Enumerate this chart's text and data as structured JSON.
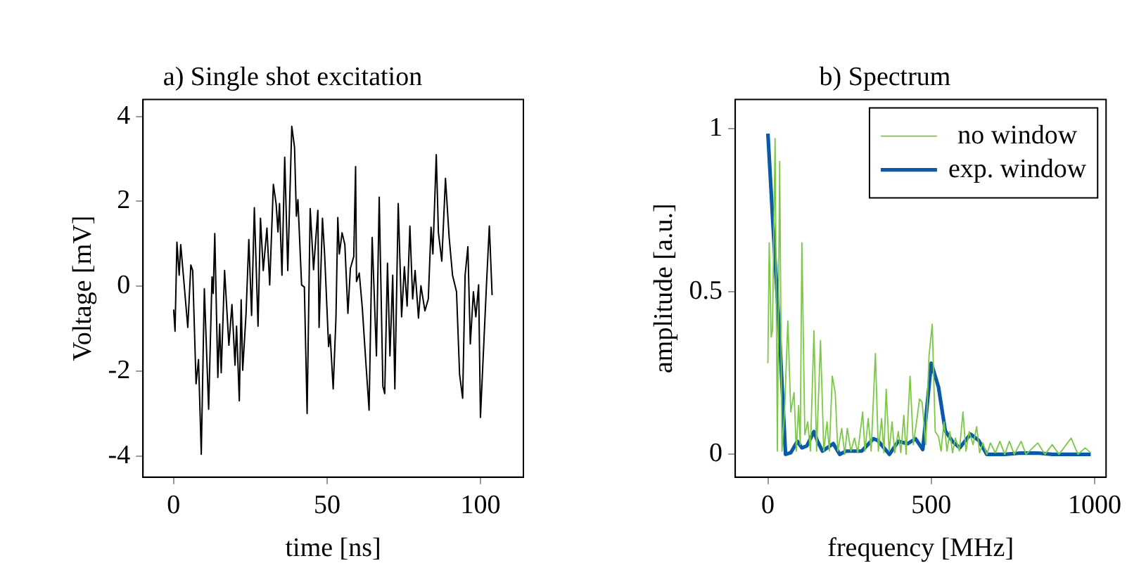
{
  "chart_data": [
    {
      "type": "line",
      "title": "a) Single shot excitation",
      "xlabel": "time [ns]",
      "ylabel": "Voltage [mV]",
      "xlim": [
        -10,
        114
      ],
      "xticks": [
        0,
        50,
        100
      ],
      "ylim": [
        -4.5,
        4.4
      ],
      "yticks": [
        -4,
        -2,
        0,
        2,
        4
      ],
      "grid": false,
      "legend": false,
      "marker": "none",
      "series": [
        {
          "color": "#000000",
          "x": [
            0,
            0.45,
            1.06,
            1.8,
            2.3,
            3.3,
            4.6,
            5.6,
            6.2,
            7.3,
            8.1,
            9.0,
            10,
            11.4,
            12.5,
            12.9,
            13.4,
            14.4,
            15,
            15.5,
            16.6,
            18,
            19,
            20,
            20.5,
            21.4,
            22,
            22.5,
            23.6,
            24.5,
            25.4,
            26.3,
            27.5,
            28.3,
            29.2,
            30.4,
            31.3,
            32.5,
            33.4,
            34,
            34.5,
            35.3,
            36.2,
            37.2,
            38.5,
            39.4,
            40,
            40.5,
            41.7,
            42.6,
            43.5,
            44.5,
            45.6,
            47,
            47.4,
            48.5,
            49.2,
            50.5,
            51,
            52,
            52.9,
            53.5,
            54,
            54.9,
            55.8,
            56.8,
            57.6,
            58.7,
            59.3,
            59.6,
            60.5,
            61.5,
            62.5,
            63.7,
            64.7,
            66.1,
            67,
            68.2,
            68.8,
            69.7,
            70.5,
            71.4,
            72.1,
            73.2,
            74.3,
            75.2,
            76.1,
            77,
            77.9,
            78.7,
            79.8,
            80.6,
            81.9,
            83,
            83.9,
            84.5,
            85.6,
            86.3,
            87.4,
            88.6,
            89.8,
            90.9,
            92.2,
            93.2,
            94.2,
            95,
            95.9,
            96.7,
            97.7,
            98.5,
            99.4,
            100,
            102,
            102.9,
            103.8
          ],
          "values": [
            -0.55,
            -1.06,
            1.04,
            0.26,
            0.98,
            0.14,
            -0.97,
            0.5,
            0.37,
            -2.3,
            -1.73,
            -3.96,
            -0.06,
            -2.9,
            0.22,
            -0.17,
            1.24,
            -2.15,
            -0.89,
            -2.04,
            0.37,
            -1.39,
            -0.43,
            -1.86,
            -0.94,
            -2.7,
            -0.32,
            -1.98,
            -0.64,
            1.1,
            -0.69,
            1.85,
            -0.94,
            1.6,
            0.37,
            1.37,
            0.03,
            2.4,
            1.94,
            1.28,
            1.95,
            0.26,
            3.04,
            0.37,
            3.77,
            3.27,
            1.65,
            2.04,
            0.03,
            -0.02,
            -3.0,
            1.83,
            0.39,
            1.79,
            -0.97,
            1.6,
            0.76,
            -1.42,
            -1.14,
            -2.42,
            -0.75,
            1.62,
            0.76,
            1.26,
            0.98,
            -0.64,
            0.42,
            0.7,
            2.82,
            0.11,
            0.31,
            -0.52,
            -1.64,
            -2.92,
            1.15,
            -1.64,
            2.1,
            -2.36,
            -2.53,
            0.54,
            -1.64,
            0.26,
            -2.42,
            1.95,
            -0.72,
            0.46,
            -0.47,
            1.42,
            -0.3,
            0.37,
            -0.75,
            0.01,
            -0.58,
            -0.3,
            1.39,
            0.76,
            3.1,
            1.26,
            0.59,
            2.54,
            1.15,
            0.26,
            -0.13,
            -2.08,
            -2.64,
            0.26,
            0.93,
            -1.36,
            -0.13,
            -0.72,
            0.03,
            -3.09,
            0.09,
            1.42,
            -0.21
          ]
        }
      ]
    },
    {
      "type": "line",
      "title": "b) Spectrum",
      "xlabel": "frequency [MHz]",
      "ylabel": "amplitude [a.u.]",
      "xlim": [
        -100,
        1035
      ],
      "xticks": [
        0,
        500,
        1000
      ],
      "ylim": [
        -0.07,
        1.09
      ],
      "yticks": [
        0,
        0.5,
        1
      ],
      "grid": false,
      "legend": "top right",
      "marker": "none",
      "series": [
        {
          "name": "no window",
          "color": "#7ac943",
          "x": [
            0,
            4,
            10,
            14,
            22,
            29,
            36,
            43,
            51,
            61,
            70,
            80,
            87,
            94,
            99,
            104,
            113,
            122,
            130,
            141,
            149,
            161,
            171,
            181,
            188,
            197,
            206,
            214,
            226,
            235,
            243,
            254,
            265,
            275,
            290,
            297,
            307,
            316,
            329,
            338,
            348,
            355,
            362,
            371,
            380,
            388,
            399,
            407,
            416,
            423,
            435,
            445,
            455,
            464,
            472,
            483,
            493,
            503,
            512,
            522,
            530,
            539,
            548,
            557,
            565,
            574,
            586,
            597,
            606,
            616,
            628,
            639,
            648,
            658,
            670,
            681,
            696,
            710,
            725,
            739,
            754,
            775,
            790,
            826,
            848,
            870,
            891,
            928,
            949,
            971,
            988
          ],
          "values": [
            0.28,
            0.65,
            0.36,
            0.38,
            0.97,
            0.01,
            0.9,
            0.01,
            0.13,
            0.41,
            0.13,
            0.19,
            0.01,
            0.15,
            0.03,
            0.65,
            0.06,
            0.1,
            0.01,
            0.38,
            0.01,
            0.35,
            0.01,
            0.1,
            0.01,
            0.24,
            0.19,
            0.01,
            0.08,
            0,
            0.08,
            0.01,
            0.05,
            0.005,
            0.13,
            0.01,
            0.11,
            0.01,
            0.31,
            0.01,
            0.11,
            0.005,
            0.2,
            0.01,
            0.1,
            0.005,
            0.07,
            0.005,
            0.12,
            0,
            0.24,
            0.03,
            0.1,
            0.17,
            0.16,
            0.03,
            0.3,
            0.4,
            0.07,
            0.055,
            0.01,
            0.1,
            0.01,
            0.07,
            0.005,
            0.05,
            0.01,
            0.13,
            0.01,
            0.07,
            0.03,
            0.085,
            0.005,
            0.035,
            0,
            0.035,
            0.005,
            0.04,
            0,
            0.04,
            0,
            0.04,
            0,
            0.035,
            0,
            0.03,
            0,
            0.05,
            0,
            0.02,
            0.005
          ]
        },
        {
          "name": "exp. window",
          "color": "#0b5aa8",
          "x": [
            0,
            17,
            36,
            54,
            70,
            90,
            104,
            119,
            141,
            152,
            167,
            200,
            220,
            239,
            287,
            323,
            336,
            372,
            399,
            428,
            452,
            474,
            500,
            522,
            543,
            565,
            587,
            620,
            645,
            670,
            725,
            775,
            826,
            870,
            988
          ],
          "values": [
            0.985,
            0.68,
            0.36,
            0,
            0.005,
            0.04,
            0.02,
            0.026,
            0.07,
            0.04,
            0.01,
            0.033,
            0,
            0.01,
            0.01,
            0.048,
            0.043,
            0,
            0.04,
            0.033,
            0.048,
            0.015,
            0.28,
            0.207,
            0.072,
            0.04,
            0.02,
            0.062,
            0.043,
            0,
            0,
            0.004,
            0.004,
            0,
            0
          ]
        }
      ]
    }
  ]
}
